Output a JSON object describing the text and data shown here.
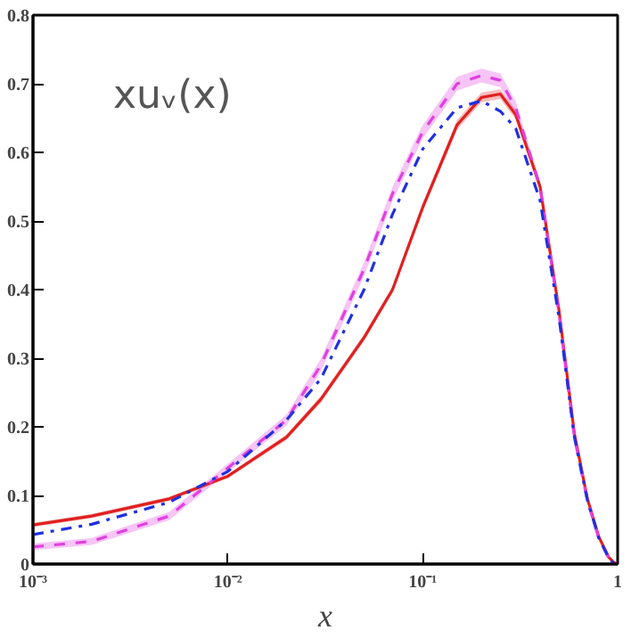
{
  "chart_data": {
    "type": "line",
    "xlabel": "x",
    "annotations": [
      "xuᵥ(x)"
    ],
    "log": "x",
    "grid": false,
    "x": [
      0.001,
      0.002,
      0.005,
      0.01,
      0.02,
      0.03,
      0.05,
      0.07,
      0.1,
      0.15,
      0.2,
      0.25,
      0.3,
      0.4,
      0.5,
      0.6,
      0.7,
      0.8,
      0.9,
      0.95,
      1
    ],
    "xlim": [
      0.001,
      1
    ],
    "ylim": [
      0,
      0.8
    ],
    "xticks": [
      {
        "value": 0.001,
        "label": "10⁻³"
      },
      {
        "value": 0.01,
        "label": "10⁻²"
      },
      {
        "value": 0.1,
        "label": "10⁻¹"
      },
      1
    ],
    "yticks": [
      0,
      0.1,
      0.2,
      0.3,
      0.4,
      0.5,
      0.6,
      0.7,
      0.8
    ],
    "series": [
      {
        "color": "#e02020",
        "line_style": "solid",
        "values": [
          0.057,
          0.07,
          0.095,
          0.128,
          0.185,
          0.24,
          0.33,
          0.4,
          0.52,
          0.64,
          0.68,
          0.685,
          0.655,
          0.55,
          0.37,
          0.19,
          0.095,
          0.04,
          0.01,
          0.003,
          0
        ],
        "lower": [
          0.054,
          0.067,
          0.092,
          0.125,
          0.181,
          0.235,
          0.325,
          0.395,
          0.514,
          0.633,
          0.673,
          0.678,
          0.648,
          0.544,
          0.365,
          0.187,
          0.093,
          0.039,
          0.009,
          0.002,
          0
        ],
        "upper": [
          0.06,
          0.073,
          0.098,
          0.131,
          0.189,
          0.245,
          0.335,
          0.405,
          0.526,
          0.647,
          0.687,
          0.692,
          0.662,
          0.556,
          0.375,
          0.193,
          0.097,
          0.041,
          0.011,
          0.004,
          0
        ]
      },
      {
        "color": "#e040e0",
        "line_style": "dashed",
        "values": [
          0.025,
          0.033,
          0.07,
          0.14,
          0.21,
          0.29,
          0.43,
          0.54,
          0.63,
          0.7,
          0.712,
          0.705,
          0.665,
          0.55,
          0.365,
          0.185,
          0.092,
          0.038,
          0.009,
          0.002,
          0
        ],
        "lower": [
          0.02,
          0.028,
          0.064,
          0.134,
          0.202,
          0.281,
          0.42,
          0.53,
          0.62,
          0.69,
          0.702,
          0.695,
          0.656,
          0.543,
          0.36,
          0.182,
          0.09,
          0.037,
          0.008,
          0.002,
          0
        ],
        "upper": [
          0.03,
          0.038,
          0.076,
          0.146,
          0.218,
          0.299,
          0.44,
          0.55,
          0.64,
          0.71,
          0.722,
          0.715,
          0.674,
          0.557,
          0.37,
          0.188,
          0.094,
          0.039,
          0.01,
          0.003,
          0
        ]
      },
      {
        "color": "#2030e0",
        "line_style": "dashdot",
        "values": [
          0.043,
          0.058,
          0.09,
          0.135,
          0.21,
          0.27,
          0.4,
          0.51,
          0.605,
          0.665,
          0.675,
          0.66,
          0.635,
          0.53,
          0.36,
          0.185,
          0.093,
          0.038,
          0.009,
          0.002,
          0
        ]
      }
    ]
  }
}
